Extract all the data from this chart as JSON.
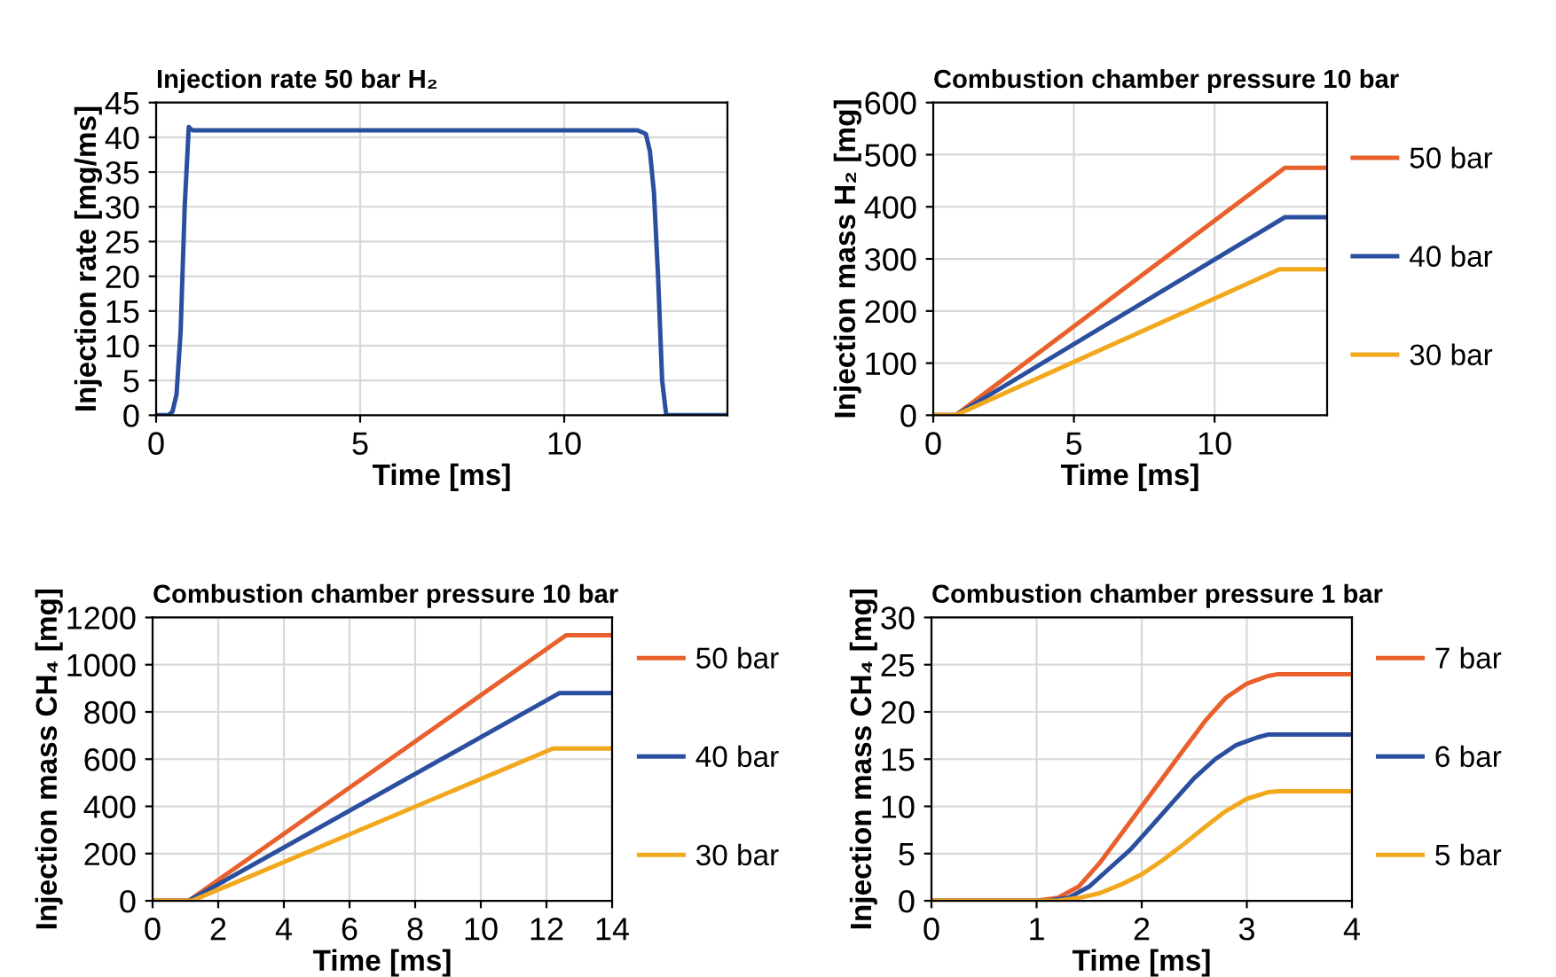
{
  "chart_data": [
    {
      "type": "line",
      "title": "Injection rate 50 bar H₂",
      "xlabel": "Time [ms]",
      "ylabel": "Injection rate [mg/ms]",
      "xlim": [
        0,
        14
      ],
      "xticks": [
        0,
        5,
        10
      ],
      "ylim": [
        0,
        45
      ],
      "yticks": [
        0,
        5,
        10,
        15,
        20,
        25,
        30,
        35,
        40,
        45
      ],
      "grid": true,
      "legend": false,
      "series": [
        {
          "color": "#2a4f9f",
          "x": [
            0,
            0.3,
            0.4,
            0.5,
            0.6,
            0.7,
            0.8,
            0.85,
            0.9,
            1.0,
            11.5,
            11.8,
            12.0,
            12.1,
            12.2,
            12.3,
            12.4,
            12.5,
            14
          ],
          "values": [
            0,
            0,
            0.5,
            3,
            12,
            30,
            41.5,
            41.2,
            41,
            41,
            41,
            41,
            40.5,
            38,
            32,
            20,
            5,
            0,
            0
          ]
        }
      ]
    },
    {
      "type": "line",
      "title": "Combustion chamber pressure 10 bar",
      "xlabel": "Time [ms]",
      "ylabel": "Injection mass H₂ [mg]",
      "xlim": [
        0,
        14
      ],
      "xticks": [
        0,
        5,
        10
      ],
      "ylim": [
        0,
        600
      ],
      "yticks": [
        0,
        100,
        200,
        300,
        400,
        500,
        600
      ],
      "grid": true,
      "legend": "right",
      "series": [
        {
          "name": "50 bar",
          "color": "#e8602c",
          "x": [
            0,
            0.8,
            12.5,
            14
          ],
          "values": [
            0,
            0,
            475,
            475
          ]
        },
        {
          "name": "40 bar",
          "color": "#2a4f9f",
          "x": [
            0,
            0.8,
            12.5,
            14
          ],
          "values": [
            0,
            0,
            380,
            380
          ]
        },
        {
          "name": "30 bar",
          "color": "#f2a81d",
          "x": [
            0,
            0.8,
            12.3,
            14
          ],
          "values": [
            0,
            0,
            280,
            280
          ]
        }
      ]
    },
    {
      "type": "line",
      "title": "Combustion chamber pressure 10 bar",
      "xlabel": "Time [ms]",
      "ylabel": "Injection mass CH₄ [mg]",
      "xlim": [
        0,
        14
      ],
      "xticks": [
        0,
        2,
        4,
        6,
        8,
        10,
        12,
        14
      ],
      "ylim": [
        0,
        1200
      ],
      "yticks": [
        0,
        200,
        400,
        600,
        800,
        1000,
        1200
      ],
      "grid": true,
      "legend": "right",
      "series": [
        {
          "name": "50 bar",
          "color": "#e8602c",
          "x": [
            0,
            1.1,
            12.6,
            14
          ],
          "values": [
            0,
            0,
            1125,
            1125
          ]
        },
        {
          "name": "40 bar",
          "color": "#2a4f9f",
          "x": [
            0,
            1.1,
            12.4,
            14
          ],
          "values": [
            0,
            0,
            880,
            880
          ]
        },
        {
          "name": "30 bar",
          "color": "#f2a81d",
          "x": [
            0,
            1.2,
            12.2,
            14
          ],
          "values": [
            0,
            0,
            645,
            645
          ]
        }
      ]
    },
    {
      "type": "line",
      "title": "Combustion chamber pressure 1 bar",
      "xlabel": "Time [ms]",
      "ylabel": "Injection mass CH₄ [mg]",
      "xlim": [
        0,
        4
      ],
      "xticks": [
        0,
        1,
        2,
        3,
        4
      ],
      "ylim": [
        0,
        30
      ],
      "yticks": [
        0,
        5,
        10,
        15,
        20,
        25,
        30
      ],
      "grid": true,
      "legend": "right",
      "series": [
        {
          "name": "7 bar",
          "color": "#e8602c",
          "x": [
            0,
            1,
            1.2,
            1.4,
            1.6,
            1.8,
            2,
            2.2,
            2.4,
            2.6,
            2.8,
            3.0,
            3.2,
            3.3,
            4
          ],
          "values": [
            0,
            0,
            0.3,
            1.5,
            4,
            7,
            10,
            13,
            16,
            19,
            21.5,
            23,
            23.8,
            24,
            24
          ]
        },
        {
          "name": "6 bar",
          "color": "#2a4f9f",
          "x": [
            0,
            1.1,
            1.3,
            1.5,
            1.7,
            1.9,
            2.1,
            2.3,
            2.5,
            2.7,
            2.9,
            3.1,
            3.2,
            4
          ],
          "values": [
            0,
            0,
            0.3,
            1.5,
            3.5,
            5.5,
            8,
            10.5,
            13,
            15,
            16.5,
            17.3,
            17.6,
            17.6
          ]
        },
        {
          "name": "5 bar",
          "color": "#f2a81d",
          "x": [
            0,
            1.2,
            1.4,
            1.6,
            1.8,
            2.0,
            2.2,
            2.4,
            2.6,
            2.8,
            3.0,
            3.2,
            3.3,
            4
          ],
          "values": [
            0,
            0,
            0.3,
            0.8,
            1.7,
            2.8,
            4.3,
            6,
            7.8,
            9.5,
            10.8,
            11.5,
            11.6,
            11.6
          ]
        }
      ]
    }
  ]
}
